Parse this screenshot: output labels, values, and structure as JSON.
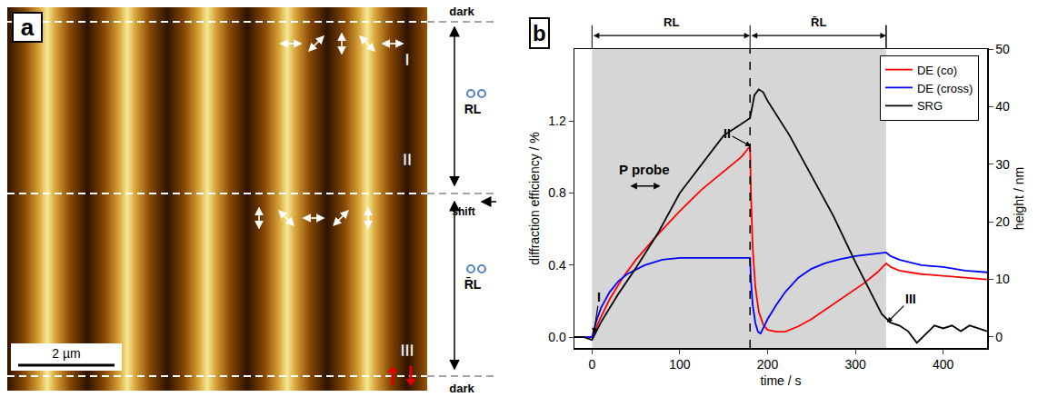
{
  "panel_a": {
    "letter": "a",
    "top_label": "dark",
    "bottom_label": "dark",
    "regions": [
      "I",
      "II",
      "III"
    ],
    "phases": [
      "RL",
      "R̄L"
    ],
    "shift": "shift",
    "scale_bar": "2 µm"
  },
  "chart_data": {
    "type": "line",
    "letter": "b",
    "x_label": "time / s",
    "y_label": "diffraction efficiency / %",
    "y2_label": "height / nm",
    "xlim": [
      -20,
      450
    ],
    "xticks": [
      0,
      100,
      200,
      300,
      400
    ],
    "ylim": [
      -0.06,
      1.6
    ],
    "yticks": [
      {
        "value": 0,
        "label": "0.0"
      },
      0.4,
      0.8,
      1.2
    ],
    "y2lim": [
      -1.9,
      50
    ],
    "y2ticks": [
      0,
      10,
      20,
      30,
      40,
      50
    ],
    "grid": false,
    "legend": "top right",
    "shaded": [
      0,
      335
    ],
    "switch": 180,
    "phases": [
      {
        "label": "RL",
        "start": 0,
        "end": 180
      },
      {
        "label": "R̄L",
        "start": 180,
        "end": 335
      }
    ],
    "probe": {
      "text": "P probe",
      "x": 60,
      "y": 0.93,
      "arrow_from": 42,
      "arrow_to": 78,
      "arrow_y": 0.84
    },
    "annotations": [
      {
        "text": "I",
        "x": 2,
        "y": 0.02,
        "axis": "y"
      },
      {
        "text": "II",
        "x": 181,
        "y": 1.06,
        "axis": "y"
      },
      {
        "text": "III",
        "x": 336,
        "y": 2.5,
        "axis": "y2"
      }
    ],
    "series": [
      {
        "name": "DE (co)",
        "color": "#ff0000",
        "axis": "y",
        "x": [
          -20,
          -10,
          0,
          10,
          20,
          35,
          50,
          75,
          100,
          125,
          150,
          170,
          180,
          181,
          183,
          186,
          190,
          195,
          200,
          210,
          220,
          235,
          250,
          265,
          280,
          295,
          310,
          325,
          335,
          340,
          350,
          375,
          400,
          425,
          450
        ],
        "values": [
          0,
          0,
          0,
          0.11,
          0.21,
          0.33,
          0.43,
          0.57,
          0.7,
          0.82,
          0.92,
          1.0,
          1.06,
          0.8,
          0.5,
          0.28,
          0.14,
          0.07,
          0.04,
          0.03,
          0.03,
          0.06,
          0.1,
          0.15,
          0.2,
          0.25,
          0.3,
          0.36,
          0.41,
          0.39,
          0.37,
          0.35,
          0.34,
          0.33,
          0.32
        ]
      },
      {
        "name": "DE (cross)",
        "color": "#0000ff",
        "axis": "y",
        "x": [
          -20,
          -10,
          0,
          5,
          10,
          20,
          30,
          40,
          60,
          80,
          100,
          140,
          180,
          181,
          183,
          186,
          189,
          192,
          196,
          200,
          210,
          220,
          235,
          250,
          265,
          280,
          300,
          320,
          335,
          340,
          350,
          375,
          400,
          425,
          450
        ],
        "values": [
          0,
          0,
          0,
          0.09,
          0.16,
          0.25,
          0.31,
          0.35,
          0.4,
          0.43,
          0.44,
          0.44,
          0.44,
          0.32,
          0.18,
          0.08,
          0.03,
          0.02,
          0.06,
          0.1,
          0.18,
          0.25,
          0.33,
          0.38,
          0.41,
          0.43,
          0.45,
          0.46,
          0.47,
          0.45,
          0.43,
          0.4,
          0.39,
          0.37,
          0.36
        ]
      },
      {
        "name": "SRG",
        "color": "#000000",
        "axis": "y2",
        "x": [
          -20,
          -10,
          0,
          5,
          10,
          20,
          30,
          50,
          75,
          100,
          125,
          150,
          170,
          180,
          185,
          190,
          195,
          200,
          225,
          250,
          275,
          300,
          320,
          330,
          340,
          350,
          360,
          370,
          380,
          390,
          400,
          410,
          420,
          430,
          440,
          450
        ],
        "values": [
          0,
          0,
          -0.5,
          1,
          2.5,
          5,
          7.5,
          12,
          18,
          25,
          30,
          35,
          37,
          38,
          42,
          43,
          42.5,
          41,
          35,
          28,
          21,
          13,
          7,
          4,
          2.5,
          2,
          1,
          -1,
          0.5,
          2,
          1.5,
          2,
          1,
          2,
          1.5,
          1
        ]
      }
    ]
  }
}
